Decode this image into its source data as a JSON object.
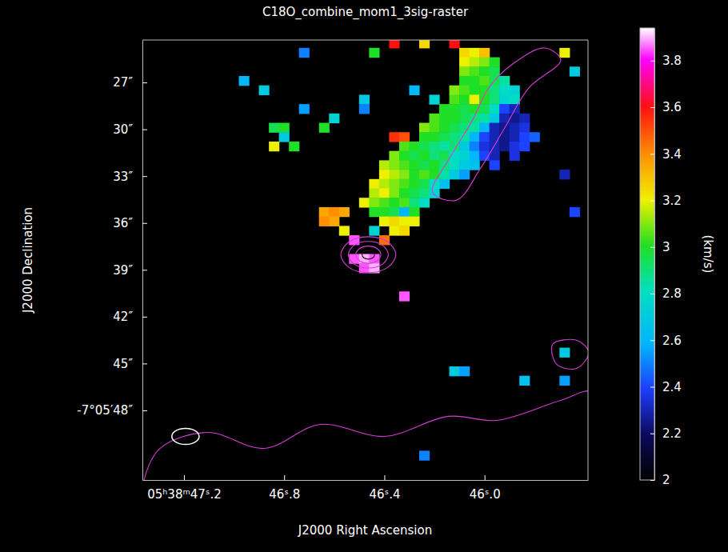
{
  "chart_data": {
    "type": "heatmap",
    "title": "C18O_combine_mom1_3sig-raster",
    "xlabel": "J2000 Right Ascension",
    "ylabel": "J2000 Declination",
    "xlim": [
      47.366,
      45.587
    ],
    "ylim": [
      52.46,
      24.28
    ],
    "xticks": [
      {
        "value": 47.2,
        "label": "05ʰ38ᵐ47ˢ.2"
      },
      {
        "value": 46.8,
        "label": "46ˢ.8"
      },
      {
        "value": 46.4,
        "label": "46ˢ.4"
      },
      {
        "value": 46.0,
        "label": "46ˢ.0"
      }
    ],
    "yticks": [
      {
        "value": 27,
        "label": "27″"
      },
      {
        "value": 30,
        "label": "30″"
      },
      {
        "value": 33,
        "label": "33″"
      },
      {
        "value": 36,
        "label": "36″"
      },
      {
        "value": 39,
        "label": "39″"
      },
      {
        "value": 42,
        "label": "42″"
      },
      {
        "value": 45,
        "label": "45″"
      },
      {
        "value": 48,
        "label": "-7°05′48″"
      }
    ],
    "colorbar": {
      "range": [
        2,
        3.94
      ],
      "ticks": [
        2,
        2.2,
        2.4,
        2.6,
        2.8,
        3,
        3.2,
        3.4,
        3.6,
        3.8
      ],
      "label": "(km/s)"
    },
    "cells": [
      [
        46.36,
        24.5,
        3.6
      ],
      [
        46.24,
        24.5,
        3.25
      ],
      [
        46.12,
        24.5,
        3.6
      ],
      [
        46.72,
        25.1,
        2.5
      ],
      [
        46.44,
        25.1,
        3.0
      ],
      [
        46.08,
        25.1,
        3.25
      ],
      [
        46.04,
        25.1,
        3.2
      ],
      [
        46.0,
        25.1,
        3.3
      ],
      [
        45.68,
        25.1,
        3.2
      ],
      [
        46.08,
        25.7,
        3.2
      ],
      [
        46.04,
        25.7,
        3.15
      ],
      [
        46.0,
        25.7,
        3.1
      ],
      [
        45.96,
        25.7,
        3.0
      ],
      [
        46.08,
        26.3,
        3.1
      ],
      [
        46.04,
        26.3,
        3.05
      ],
      [
        46.0,
        26.3,
        3.0
      ],
      [
        45.96,
        26.3,
        2.95
      ],
      [
        45.64,
        26.3,
        2.7
      ],
      [
        46.96,
        26.9,
        2.6
      ],
      [
        46.08,
        26.9,
        3.0
      ],
      [
        46.04,
        26.9,
        3.0
      ],
      [
        46.0,
        26.9,
        3.05
      ],
      [
        45.96,
        26.9,
        2.95
      ],
      [
        45.92,
        26.9,
        2.85
      ],
      [
        46.88,
        27.5,
        2.7
      ],
      [
        46.28,
        27.5,
        2.6
      ],
      [
        46.12,
        27.5,
        3.1
      ],
      [
        46.08,
        27.5,
        3.05
      ],
      [
        46.04,
        27.5,
        3.0
      ],
      [
        46.0,
        27.5,
        3.0
      ],
      [
        45.96,
        27.5,
        2.9
      ],
      [
        45.92,
        27.5,
        2.8
      ],
      [
        45.88,
        27.5,
        2.75
      ],
      [
        46.48,
        28.1,
        2.7
      ],
      [
        46.2,
        28.1,
        2.75
      ],
      [
        46.12,
        28.1,
        3.05
      ],
      [
        46.08,
        28.1,
        3.0
      ],
      [
        46.04,
        28.1,
        3.2
      ],
      [
        46.0,
        28.1,
        3.0
      ],
      [
        45.96,
        28.1,
        2.9
      ],
      [
        45.92,
        28.1,
        2.75
      ],
      [
        45.88,
        28.1,
        2.8
      ],
      [
        46.72,
        28.7,
        2.55
      ],
      [
        46.48,
        28.7,
        2.5
      ],
      [
        46.16,
        28.7,
        3.0
      ],
      [
        46.12,
        28.7,
        3.0
      ],
      [
        46.08,
        28.7,
        2.95
      ],
      [
        46.04,
        28.7,
        3.0
      ],
      [
        46.0,
        28.7,
        2.95
      ],
      [
        45.96,
        28.7,
        2.8
      ],
      [
        45.92,
        28.7,
        2.4
      ],
      [
        45.88,
        28.7,
        2.3
      ],
      [
        46.6,
        29.3,
        2.75
      ],
      [
        46.2,
        29.3,
        3.05
      ],
      [
        46.16,
        29.3,
        3.0
      ],
      [
        46.12,
        29.3,
        3.0
      ],
      [
        46.08,
        29.3,
        2.95
      ],
      [
        46.04,
        29.3,
        2.9
      ],
      [
        46.0,
        29.3,
        2.85
      ],
      [
        45.96,
        29.3,
        2.7
      ],
      [
        45.92,
        29.3,
        2.3
      ],
      [
        45.88,
        29.3,
        2.25
      ],
      [
        45.84,
        29.3,
        2.3
      ],
      [
        46.84,
        29.9,
        2.95
      ],
      [
        46.8,
        29.9,
        3.0
      ],
      [
        46.64,
        29.9,
        3.0
      ],
      [
        46.24,
        29.9,
        3.1
      ],
      [
        46.2,
        29.9,
        3.05
      ],
      [
        46.16,
        29.9,
        3.0
      ],
      [
        46.12,
        29.9,
        2.95
      ],
      [
        46.08,
        29.9,
        2.9
      ],
      [
        46.04,
        29.9,
        2.85
      ],
      [
        46.0,
        29.9,
        2.6
      ],
      [
        45.96,
        29.9,
        2.3
      ],
      [
        45.92,
        29.9,
        2.25
      ],
      [
        45.88,
        29.9,
        2.3
      ],
      [
        45.84,
        29.9,
        2.35
      ],
      [
        46.8,
        30.5,
        2.7
      ],
      [
        46.36,
        30.5,
        3.55
      ],
      [
        46.32,
        30.5,
        3.5
      ],
      [
        46.24,
        30.5,
        3.0
      ],
      [
        46.2,
        30.5,
        3.0
      ],
      [
        46.16,
        30.5,
        2.95
      ],
      [
        46.12,
        30.5,
        2.9
      ],
      [
        46.08,
        30.5,
        2.85
      ],
      [
        46.04,
        30.5,
        2.6
      ],
      [
        46.0,
        30.5,
        2.4
      ],
      [
        45.96,
        30.5,
        2.3
      ],
      [
        45.92,
        30.5,
        2.25
      ],
      [
        45.88,
        30.5,
        2.3
      ],
      [
        45.84,
        30.5,
        2.4
      ],
      [
        45.8,
        30.5,
        2.45
      ],
      [
        46.84,
        31.1,
        3.2
      ],
      [
        46.76,
        31.1,
        3.0
      ],
      [
        46.32,
        31.1,
        3.05
      ],
      [
        46.28,
        31.1,
        3.0
      ],
      [
        46.24,
        31.1,
        2.95
      ],
      [
        46.2,
        31.1,
        2.9
      ],
      [
        46.16,
        31.1,
        2.85
      ],
      [
        46.12,
        31.1,
        2.9
      ],
      [
        46.08,
        31.1,
        2.7
      ],
      [
        46.04,
        31.1,
        2.5
      ],
      [
        46.0,
        31.1,
        2.35
      ],
      [
        45.96,
        31.1,
        2.3
      ],
      [
        45.92,
        31.1,
        2.25
      ],
      [
        45.88,
        31.1,
        2.35
      ],
      [
        45.84,
        31.1,
        2.4
      ],
      [
        46.36,
        31.7,
        3.1
      ],
      [
        46.32,
        31.7,
        3.0
      ],
      [
        46.28,
        31.7,
        2.95
      ],
      [
        46.24,
        31.7,
        3.0
      ],
      [
        46.2,
        31.7,
        2.9
      ],
      [
        46.16,
        31.7,
        2.95
      ],
      [
        46.12,
        31.7,
        2.8
      ],
      [
        46.08,
        31.7,
        2.75
      ],
      [
        46.04,
        31.7,
        2.6
      ],
      [
        46.0,
        31.7,
        2.4
      ],
      [
        45.96,
        31.7,
        2.3
      ],
      [
        45.88,
        31.7,
        2.35
      ],
      [
        46.4,
        32.3,
        3.15
      ],
      [
        46.36,
        32.3,
        3.1
      ],
      [
        46.32,
        32.3,
        3.05
      ],
      [
        46.28,
        32.3,
        3.0
      ],
      [
        46.24,
        32.3,
        2.95
      ],
      [
        46.2,
        32.3,
        3.0
      ],
      [
        46.16,
        32.3,
        2.9
      ],
      [
        46.12,
        32.3,
        2.8
      ],
      [
        46.08,
        32.3,
        2.7
      ],
      [
        46.04,
        32.3,
        2.65
      ],
      [
        45.96,
        32.3,
        2.4
      ],
      [
        46.4,
        32.9,
        3.2
      ],
      [
        46.36,
        32.9,
        3.15
      ],
      [
        46.32,
        32.9,
        3.1
      ],
      [
        46.28,
        32.9,
        3.0
      ],
      [
        46.24,
        32.9,
        3.05
      ],
      [
        46.2,
        32.9,
        3.0
      ],
      [
        46.16,
        32.9,
        2.85
      ],
      [
        46.12,
        32.9,
        2.7
      ],
      [
        46.08,
        32.9,
        2.55
      ],
      [
        45.68,
        32.9,
        2.3
      ],
      [
        46.44,
        33.5,
        3.2
      ],
      [
        46.4,
        33.5,
        3.15
      ],
      [
        46.36,
        33.5,
        3.1
      ],
      [
        46.32,
        33.5,
        3.05
      ],
      [
        46.28,
        33.5,
        3.0
      ],
      [
        46.24,
        33.5,
        2.95
      ],
      [
        46.2,
        33.5,
        2.8
      ],
      [
        46.16,
        33.5,
        2.65
      ],
      [
        46.44,
        34.1,
        3.15
      ],
      [
        46.4,
        34.1,
        3.2
      ],
      [
        46.36,
        34.1,
        3.1
      ],
      [
        46.32,
        34.1,
        3.0
      ],
      [
        46.28,
        34.1,
        2.95
      ],
      [
        46.24,
        34.1,
        2.9
      ],
      [
        46.2,
        34.1,
        2.75
      ],
      [
        46.48,
        34.7,
        3.2
      ],
      [
        46.44,
        34.7,
        3.1
      ],
      [
        46.4,
        34.7,
        3.05
      ],
      [
        46.36,
        34.7,
        3.0
      ],
      [
        46.32,
        34.7,
        3.05
      ],
      [
        46.28,
        34.7,
        2.9
      ],
      [
        46.24,
        34.7,
        2.8
      ],
      [
        46.64,
        35.3,
        3.35
      ],
      [
        46.6,
        35.3,
        3.4
      ],
      [
        46.56,
        35.3,
        3.35
      ],
      [
        46.44,
        35.3,
        3.0
      ],
      [
        46.4,
        35.3,
        3.0
      ],
      [
        46.36,
        35.3,
        2.95
      ],
      [
        46.32,
        35.3,
        2.6
      ],
      [
        46.28,
        35.3,
        3.0
      ],
      [
        45.64,
        35.3,
        2.4
      ],
      [
        46.64,
        35.9,
        3.4
      ],
      [
        46.6,
        35.9,
        3.35
      ],
      [
        46.4,
        35.9,
        3.2
      ],
      [
        46.36,
        35.9,
        3.25
      ],
      [
        46.32,
        35.9,
        3.2
      ],
      [
        46.28,
        35.9,
        3.2
      ],
      [
        46.56,
        36.5,
        3.2
      ],
      [
        46.44,
        36.5,
        2.75
      ],
      [
        46.36,
        36.5,
        3.2
      ],
      [
        46.32,
        36.5,
        3.25
      ],
      [
        46.52,
        37.1,
        3.85
      ],
      [
        46.4,
        37.1,
        3.45
      ],
      [
        46.52,
        38.3,
        3.85
      ],
      [
        46.48,
        38.3,
        3.9
      ],
      [
        46.44,
        38.3,
        3.85
      ],
      [
        46.48,
        38.9,
        3.85
      ],
      [
        46.44,
        38.9,
        3.9
      ],
      [
        46.32,
        40.7,
        3.85
      ],
      [
        45.68,
        44.3,
        2.7
      ],
      [
        46.12,
        45.5,
        2.7
      ],
      [
        46.08,
        45.5,
        2.55
      ],
      [
        45.84,
        46.1,
        2.65
      ],
      [
        45.68,
        46.1,
        2.55
      ],
      [
        46.24,
        50.9,
        2.5
      ]
    ],
    "contours": [
      [
        [
          46.574,
          38.03
        ],
        [
          46.542,
          38.84
        ],
        [
          46.464,
          39.18
        ],
        [
          46.386,
          38.84
        ],
        [
          46.354,
          38.03
        ],
        [
          46.386,
          37.22
        ],
        [
          46.464,
          36.88
        ],
        [
          46.542,
          37.22
        ]
      ],
      [
        [
          46.544,
          38.03
        ],
        [
          46.521,
          38.63
        ],
        [
          46.464,
          38.88
        ],
        [
          46.407,
          38.63
        ],
        [
          46.384,
          38.03
        ],
        [
          46.407,
          37.43
        ],
        [
          46.464,
          37.18
        ],
        [
          46.521,
          37.43
        ]
      ],
      [
        [
          46.514,
          38.03
        ],
        [
          46.499,
          38.42
        ],
        [
          46.464,
          38.58
        ],
        [
          46.429,
          38.42
        ],
        [
          46.414,
          38.03
        ],
        [
          46.429,
          37.64
        ],
        [
          46.464,
          37.48
        ],
        [
          46.499,
          37.64
        ]
      ],
      [
        [
          46.489,
          38.03
        ],
        [
          46.482,
          38.23
        ],
        [
          46.464,
          38.31
        ],
        [
          46.446,
          38.23
        ],
        [
          46.439,
          38.03
        ],
        [
          46.446,
          37.83
        ],
        [
          46.464,
          37.75
        ],
        [
          46.482,
          37.83
        ]
      ],
      [
        [
          46.208,
          34.03
        ],
        [
          46.144,
          31.97
        ],
        [
          46.048,
          29.41
        ],
        [
          45.984,
          27.36
        ],
        [
          45.888,
          25.82
        ],
        [
          45.76,
          24.79
        ],
        [
          45.696,
          25.56
        ],
        [
          45.824,
          27.36
        ],
        [
          45.92,
          29.92
        ],
        [
          46.016,
          32.49
        ],
        [
          46.112,
          34.54
        ]
      ],
      [
        [
          47.36,
          52.49
        ],
        [
          47.296,
          50.44
        ],
        [
          47.104,
          49.41
        ],
        [
          46.88,
          50.44
        ],
        [
          46.656,
          48.9
        ],
        [
          46.4,
          49.67
        ],
        [
          46.144,
          48.38
        ],
        [
          45.952,
          48.64
        ],
        [
          45.696,
          47.36
        ],
        [
          45.568,
          46.85
        ],
        [
          45.568,
          53.0
        ],
        [
          47.36,
          53.0
        ]
      ],
      [
        [
          45.728,
          43.77
        ],
        [
          45.632,
          43.51
        ],
        [
          45.584,
          44.28
        ],
        [
          45.632,
          45.31
        ],
        [
          45.712,
          45.05
        ]
      ]
    ],
    "beam": {
      "center": [
        47.194,
        49.67
      ],
      "width": 0.109,
      "height": 1.03
    }
  }
}
